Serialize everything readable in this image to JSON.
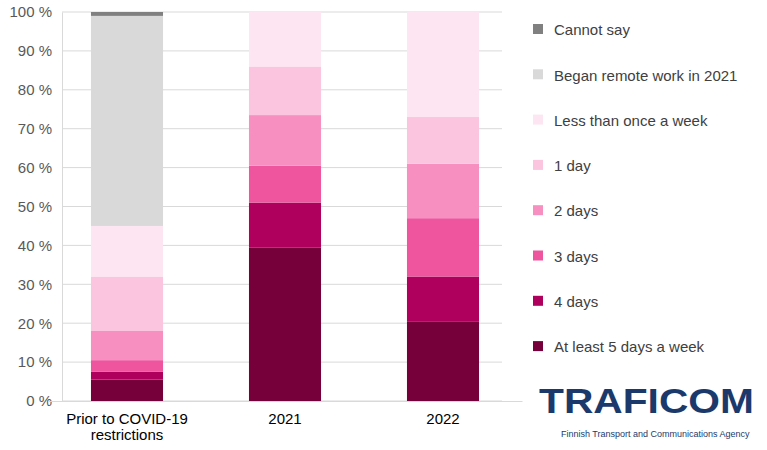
{
  "chart_data": {
    "type": "bar",
    "stacked": true,
    "grid": true,
    "legend": "right",
    "annotations": [
      "TRAFICOM",
      "Finnish Transport and Communications Agency"
    ],
    "categories": [
      "Prior to COVID-19 restrictions",
      "2021",
      "2022"
    ],
    "ylim": [
      0,
      100
    ],
    "yticks": [
      {
        "value": 0,
        "label": "0 %"
      },
      {
        "value": 10,
        "label": "10 %"
      },
      {
        "value": 20,
        "label": "20 %"
      },
      {
        "value": 30,
        "label": "30 %"
      },
      {
        "value": 40,
        "label": "40 %"
      },
      {
        "value": 50,
        "label": "50 %"
      },
      {
        "value": 60,
        "label": "60 %"
      },
      {
        "value": 70,
        "label": "70 %"
      },
      {
        "value": 80,
        "label": "80 %"
      },
      {
        "value": 90,
        "label": "90 %"
      },
      {
        "value": 100,
        "label": "100 %"
      }
    ],
    "series": [
      {
        "name": "At least 5 days a week",
        "color": "#76003a",
        "values": [
          5.5,
          39.5,
          20.5
        ]
      },
      {
        "name": "4 days",
        "color": "#b0005e",
        "values": [
          2,
          11.5,
          11.5
        ]
      },
      {
        "name": "3 days",
        "color": "#ee559e",
        "values": [
          3,
          9.5,
          15
        ]
      },
      {
        "name": "2 days",
        "color": "#f78fc0",
        "values": [
          7.5,
          13,
          14
        ]
      },
      {
        "name": "1 day",
        "color": "#fbc4df",
        "values": [
          14,
          12.5,
          12
        ]
      },
      {
        "name": "Less than once a week",
        "color": "#fde6f1",
        "values": [
          13,
          14,
          27
        ]
      },
      {
        "name": "Began remote work in 2021",
        "color": "#d9d9d9",
        "values": [
          54,
          0,
          0
        ]
      },
      {
        "name": "Cannot say",
        "color": "#808080",
        "values": [
          1,
          0,
          0
        ]
      }
    ]
  }
}
